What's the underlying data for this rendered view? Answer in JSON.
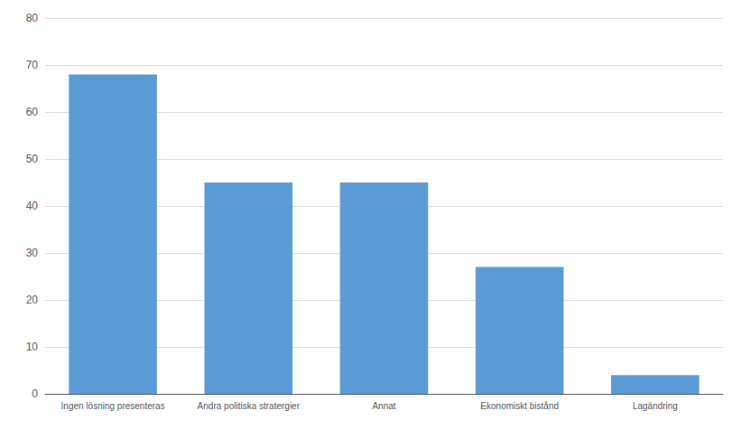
{
  "chart_data": {
    "type": "bar",
    "categories": [
      "Ingen lösning presenteras",
      "Andra politiska stratergier",
      "Annat",
      "Ekonomiskt bistånd",
      "Lagändring"
    ],
    "values": [
      68,
      45,
      45,
      27,
      4
    ],
    "color": "#5B9BD5",
    "ylim": [
      0,
      80
    ],
    "yticks": [
      0,
      10,
      20,
      30,
      40,
      50,
      60,
      70,
      80
    ],
    "grid": true
  }
}
